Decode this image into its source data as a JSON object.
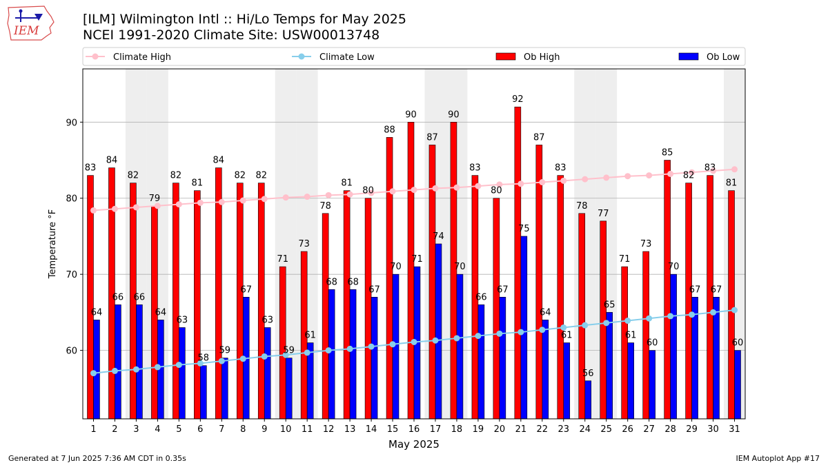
{
  "header": {
    "title_line1": "[ILM] Wilmington Intl :: Hi/Lo Temps for May 2025",
    "title_line2": "NCEI 1991-2020 Climate Site: USW00013748",
    "logo_text": "IEM"
  },
  "footer": {
    "left": "Generated at 7 Jun 2025 7:36 AM CDT in 0.35s",
    "right": "IEM Autoplot App #17"
  },
  "colors": {
    "ob_high": "#ff0000",
    "ob_low": "#0000ff",
    "climate_high": "#ffc0cb",
    "climate_low": "#87ceeb",
    "weekend_shade": "#eeeeee",
    "grid": "#b0b0b0"
  },
  "chart_data": {
    "type": "bar",
    "xlabel": "May 2025",
    "ylabel": "Temperature °F",
    "ylim": [
      51,
      97
    ],
    "yticks": [
      60,
      70,
      80,
      90
    ],
    "grid": "horizontal",
    "legend_placement": "top",
    "categories": [
      "1",
      "2",
      "3",
      "4",
      "5",
      "6",
      "7",
      "8",
      "9",
      "10",
      "11",
      "12",
      "13",
      "14",
      "15",
      "16",
      "17",
      "18",
      "19",
      "20",
      "21",
      "22",
      "23",
      "24",
      "25",
      "26",
      "27",
      "28",
      "29",
      "30",
      "31"
    ],
    "shaded_days": [
      3,
      4,
      10,
      11,
      17,
      18,
      24,
      25,
      31
    ],
    "series": [
      {
        "name": "Climate High",
        "kind": "line",
        "values": [
          78.4,
          78.6,
          78.8,
          79.0,
          79.2,
          79.4,
          79.5,
          79.7,
          79.9,
          80.1,
          80.2,
          80.4,
          80.5,
          80.7,
          80.9,
          81.1,
          81.3,
          81.4,
          81.6,
          81.8,
          81.9,
          82.1,
          82.3,
          82.5,
          82.7,
          82.9,
          83.0,
          83.2,
          83.4,
          83.6,
          83.8
        ]
      },
      {
        "name": "Climate Low",
        "kind": "line",
        "values": [
          57.0,
          57.3,
          57.5,
          57.8,
          58.1,
          58.3,
          58.6,
          58.9,
          59.2,
          59.4,
          59.7,
          60.0,
          60.2,
          60.5,
          60.8,
          61.1,
          61.3,
          61.6,
          61.9,
          62.2,
          62.4,
          62.7,
          63.0,
          63.3,
          63.6,
          63.9,
          64.2,
          64.5,
          64.7,
          65.0,
          65.3
        ]
      },
      {
        "name": "Ob High",
        "kind": "bar",
        "values": [
          83,
          84,
          82,
          79,
          82,
          81,
          84,
          82,
          82,
          71,
          73,
          78,
          81,
          80,
          88,
          90,
          87,
          90,
          83,
          80,
          92,
          87,
          83,
          78,
          77,
          71,
          73,
          85,
          82,
          83,
          81
        ]
      },
      {
        "name": "Ob Low",
        "kind": "bar",
        "values": [
          64,
          66,
          66,
          64,
          63,
          58,
          59,
          67,
          63,
          59,
          61,
          68,
          68,
          67,
          70,
          71,
          74,
          70,
          66,
          67,
          75,
          64,
          61,
          56,
          65,
          61,
          60,
          70,
          67,
          67,
          60
        ]
      }
    ]
  }
}
